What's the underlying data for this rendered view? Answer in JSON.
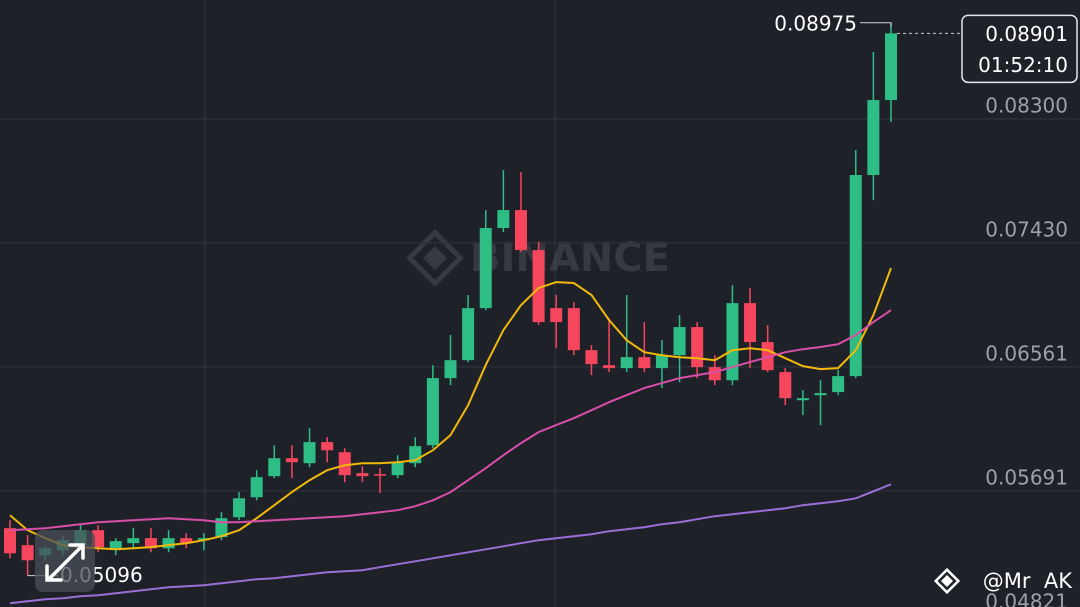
{
  "chart_data": {
    "type": "candlestick",
    "open": [
      0.05429,
      0.0531,
      0.05239,
      0.05274,
      0.0531,
      0.05415,
      0.05288,
      0.05324,
      0.05359,
      0.05288,
      0.05359,
      0.05345,
      0.05366,
      0.05506,
      0.05646,
      0.05794,
      0.0592,
      0.05885,
      0.06033,
      0.05962,
      0.05815,
      0.05808,
      0.05801,
      0.05885,
      0.06011,
      0.06482,
      0.06608,
      0.06973,
      0.07535,
      0.07661,
      0.0738,
      0.06973,
      0.06973,
      0.06678,
      0.06573,
      0.06552,
      0.06629,
      0.06552,
      0.06643,
      0.0684,
      0.06559,
      0.06467,
      0.07008,
      0.06735,
      0.06524,
      0.06327,
      0.06362,
      0.06384,
      0.06496,
      0.07907,
      0.08433
    ],
    "high": [
      0.05485,
      0.0538,
      0.0531,
      0.0538,
      0.0545,
      0.0545,
      0.05359,
      0.05429,
      0.05429,
      0.05415,
      0.05394,
      0.05394,
      0.05541,
      0.05682,
      0.05836,
      0.06011,
      0.06011,
      0.06131,
      0.06068,
      0.0599,
      0.05864,
      0.0585,
      0.05941,
      0.06068,
      0.06573,
      0.06784,
      0.07065,
      0.07661,
      0.07942,
      0.07928,
      0.07437,
      0.07065,
      0.07015,
      0.06713,
      0.06903,
      0.07065,
      0.06875,
      0.06749,
      0.06924,
      0.06875,
      0.06643,
      0.07135,
      0.07114,
      0.06854,
      0.06552,
      0.06398,
      0.06467,
      0.06538,
      0.08082,
      0.0877,
      0.08975
    ],
    "low": [
      0.05218,
      0.05096,
      0.05204,
      0.05239,
      0.05274,
      0.0526,
      0.05239,
      0.05288,
      0.0526,
      0.0526,
      0.05288,
      0.05274,
      0.05345,
      0.05485,
      0.05625,
      0.0578,
      0.0578,
      0.05857,
      0.05892,
      0.05752,
      0.05752,
      0.05675,
      0.0578,
      0.05857,
      0.0599,
      0.06433,
      0.06594,
      0.06959,
      0.07507,
      0.07366,
      0.06854,
      0.06692,
      0.06643,
      0.06503,
      0.06524,
      0.06524,
      0.06524,
      0.06412,
      0.06454,
      0.06482,
      0.06433,
      0.06433,
      0.06552,
      0.06524,
      0.06292,
      0.06222,
      0.06152,
      0.06362,
      0.06482,
      0.07731,
      0.08279
    ],
    "close": [
      0.05253,
      0.05204,
      0.05288,
      0.05345,
      0.05415,
      0.05296,
      0.05338,
      0.05359,
      0.05288,
      0.05359,
      0.05324,
      0.05359,
      0.05499,
      0.05639,
      0.05787,
      0.0592,
      0.05892,
      0.06033,
      0.05976,
      0.05801,
      0.05794,
      0.05801,
      0.05892,
      0.06005,
      0.06482,
      0.06608,
      0.06973,
      0.07535,
      0.07661,
      0.0738,
      0.06875,
      0.06875,
      0.06678,
      0.0658,
      0.06552,
      0.06629,
      0.06552,
      0.06643,
      0.0684,
      0.06559,
      0.06467,
      0.07008,
      0.06735,
      0.06538,
      0.06341,
      0.06341,
      0.06377,
      0.06496,
      0.07907,
      0.08433,
      0.08901
    ],
    "up_color": "#2ebd85",
    "down_color": "#f6465d",
    "ma_lines": [
      {
        "color": "#f0b90b",
        "values": [
          0.0552,
          0.05415,
          0.05359,
          0.0531,
          0.05296,
          0.05288,
          0.05281,
          0.05288,
          0.05296,
          0.0531,
          0.05324,
          0.05345,
          0.05373,
          0.05415,
          0.05499,
          0.0559,
          0.05682,
          0.05766,
          0.05836,
          0.05871,
          0.05885,
          0.05885,
          0.05892,
          0.05906,
          0.05976,
          0.06082,
          0.06292,
          0.06573,
          0.06819,
          0.06994,
          0.07114,
          0.07156,
          0.07149,
          0.07065,
          0.06889,
          0.06748,
          0.06664,
          0.06643,
          0.06629,
          0.06622,
          0.06608,
          0.06678,
          0.06692,
          0.06678,
          0.06622,
          0.06566,
          0.06545,
          0.06552,
          0.06678,
          0.06924,
          0.07254
        ]
      },
      {
        "color": "#d94fa8",
        "values": [
          0.05415,
          0.05422,
          0.05429,
          0.05443,
          0.05457,
          0.05471,
          0.05478,
          0.05485,
          0.05492,
          0.05499,
          0.05492,
          0.05485,
          0.05471,
          0.05471,
          0.05478,
          0.05485,
          0.05492,
          0.05499,
          0.05506,
          0.05513,
          0.05527,
          0.05541,
          0.05555,
          0.05583,
          0.05625,
          0.05682,
          0.05766,
          0.0585,
          0.05941,
          0.06026,
          0.06103,
          0.06152,
          0.06201,
          0.06257,
          0.06313,
          0.06363,
          0.06412,
          0.06447,
          0.06482,
          0.06503,
          0.06524,
          0.06559,
          0.06594,
          0.06629,
          0.06664,
          0.06685,
          0.067,
          0.0672,
          0.06784,
          0.06875,
          0.06959
        ]
      },
      {
        "color": "#9a70d8",
        "values": [
          0.04902,
          0.04916,
          0.0493,
          0.04937,
          0.04951,
          0.04958,
          0.04972,
          0.04987,
          0.05001,
          0.05015,
          0.05022,
          0.05029,
          0.05043,
          0.05057,
          0.05071,
          0.05078,
          0.05092,
          0.05106,
          0.0512,
          0.05127,
          0.05134,
          0.05155,
          0.05176,
          0.05197,
          0.05218,
          0.05239,
          0.0526,
          0.05281,
          0.05302,
          0.05324,
          0.05345,
          0.05359,
          0.05373,
          0.05387,
          0.05408,
          0.05422,
          0.05436,
          0.05457,
          0.05471,
          0.05492,
          0.05513,
          0.05527,
          0.05541,
          0.05555,
          0.05569,
          0.0559,
          0.05604,
          0.05618,
          0.05639,
          0.05688,
          0.05737
        ]
      }
    ],
    "ylim": [
      0.04876,
      0.09135
    ],
    "yticks": [
      {
        "value": 0.083,
        "label": "0.08300"
      },
      {
        "value": 0.0743,
        "label": "0.07430"
      },
      0.06561,
      0.05691,
      0.04821
    ],
    "grid": true,
    "watermark": "BINANCE",
    "countdown": "01:52:10",
    "credit": "@Mr  AK"
  }
}
